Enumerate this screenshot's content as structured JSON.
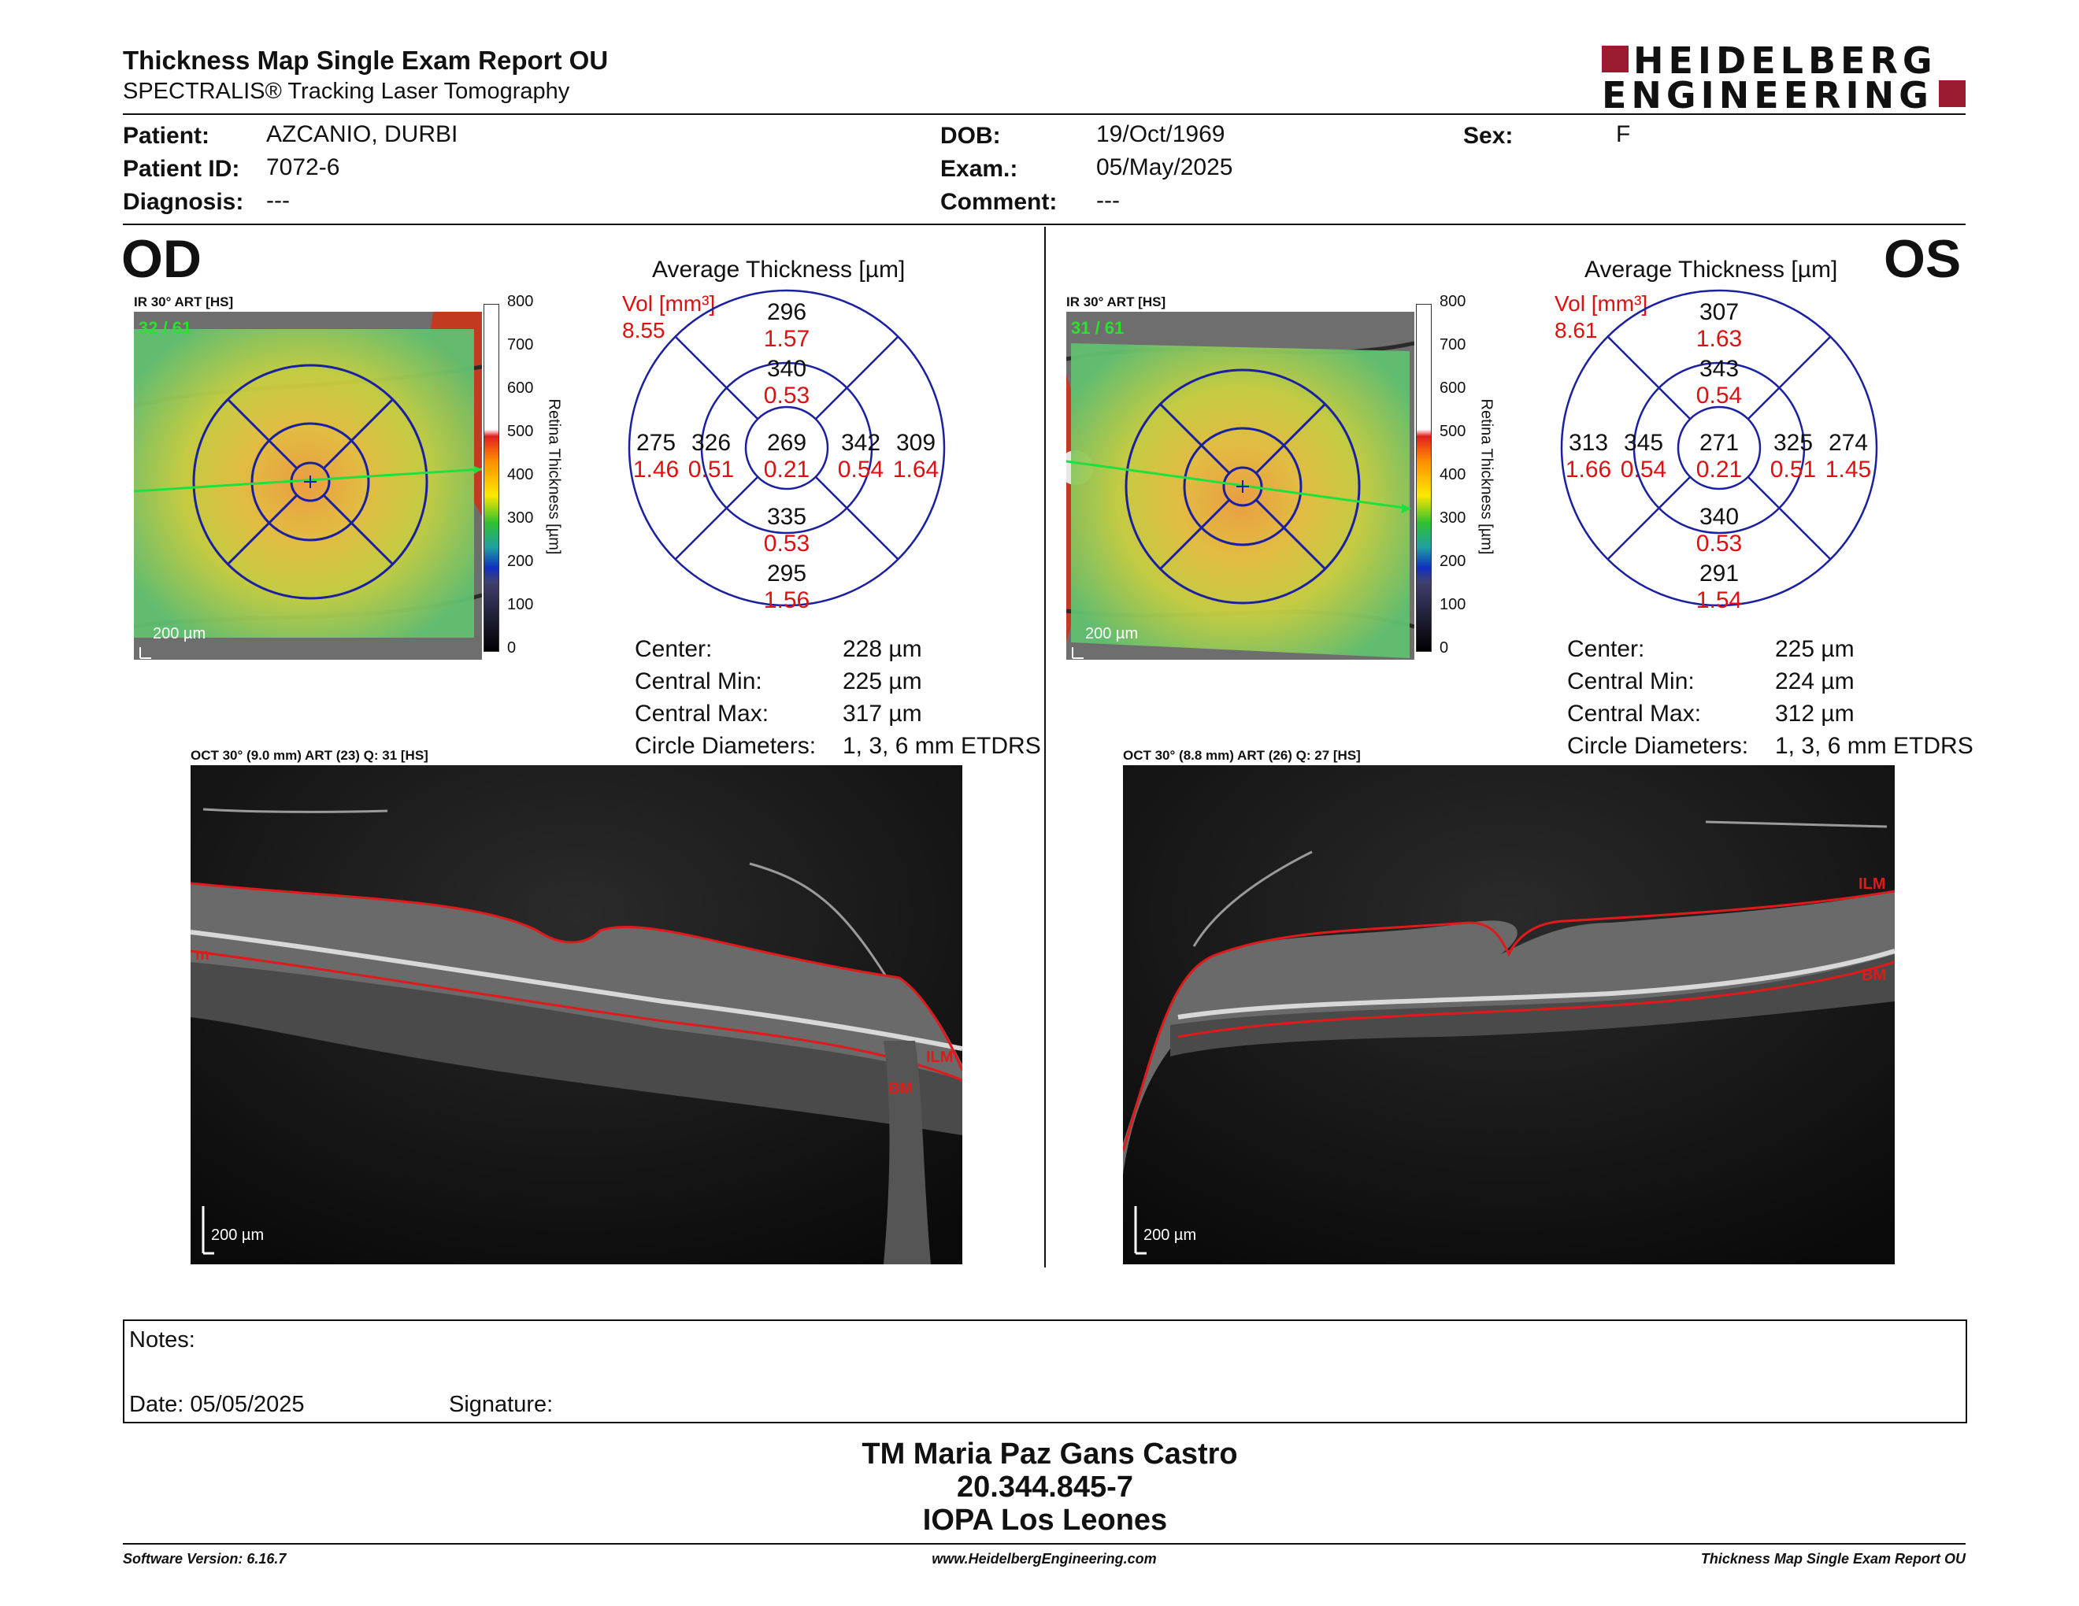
{
  "header": {
    "title": "Thickness Map Single Exam Report OU",
    "subtitle": "SPECTRALIS® Tracking Laser Tomography",
    "logo_line1": "HEIDELBERG",
    "logo_line2": "ENGINEERING",
    "brand_color": "#9b1b30"
  },
  "patient": {
    "patient_label": "Patient:",
    "patient_value": "AZCANIO, DURBI",
    "id_label": "Patient ID:",
    "id_value": "7072-6",
    "diagnosis_label": "Diagnosis:",
    "diagnosis_value": "---",
    "dob_label": "DOB:",
    "dob_value": "19/Oct/1969",
    "exam_label": "Exam.:",
    "exam_value": "05/May/2025",
    "comment_label": "Comment:",
    "comment_value": "---",
    "sex_label": "Sex:",
    "sex_value": "F"
  },
  "od": {
    "eye": "OD",
    "ir_label": "IR 30° ART [HS]",
    "ir_counter": "32 / 61",
    "ir_scale": "200 µm",
    "avg_title": "Average Thickness [µm]",
    "vol_label": "Vol [mm³]",
    "vol_total": "8.55",
    "center": "269",
    "center_vol": "0.21",
    "inner_sup": "340",
    "inner_sup_vol": "0.53",
    "inner_inf": "335",
    "inner_inf_vol": "0.53",
    "inner_temp": "326",
    "inner_temp_vol": "0.51",
    "inner_nas": "342",
    "inner_nas_vol": "0.54",
    "outer_sup": "296",
    "outer_sup_vol": "1.57",
    "outer_inf": "295",
    "outer_inf_vol": "1.56",
    "outer_temp": "275",
    "outer_temp_vol": "1.46",
    "outer_nas": "309",
    "outer_nas_vol": "1.64",
    "center_label": "Center:",
    "center_value": "228 µm",
    "cmin_label": "Central Min:",
    "cmin_value": "225 µm",
    "cmax_label": "Central Max:",
    "cmax_value": "317 µm",
    "circ_label": "Circle Diameters:",
    "circ_value": "1, 3, 6 mm ETDRS",
    "oct_label": "OCT 30° (9.0 mm) ART (23) Q: 31 [HS]",
    "oct_scale": "200 µm",
    "ilm": "ILM",
    "bm": "BM",
    "m_tag": "m"
  },
  "os": {
    "eye": "OS",
    "ir_label": "IR 30° ART [HS]",
    "ir_counter": "31 / 61",
    "ir_scale": "200 µm",
    "avg_title": "Average Thickness [µm]",
    "vol_label": "Vol [mm³]",
    "vol_total": "8.61",
    "center": "271",
    "center_vol": "0.21",
    "inner_sup": "343",
    "inner_sup_vol": "0.54",
    "inner_inf": "340",
    "inner_inf_vol": "0.53",
    "inner_temp": "345",
    "inner_temp_vol": "0.54",
    "inner_nas": "325",
    "inner_nas_vol": "0.51",
    "outer_sup": "307",
    "outer_sup_vol": "1.63",
    "outer_inf": "291",
    "outer_inf_vol": "1.54",
    "outer_temp": "313",
    "outer_temp_vol": "1.66",
    "outer_nas": "274",
    "outer_nas_vol": "1.45",
    "center_label": "Center:",
    "center_value": "225 µm",
    "cmin_label": "Central Min:",
    "cmin_value": "224 µm",
    "cmax_label": "Central Max:",
    "cmax_value": "312 µm",
    "circ_label": "Circle Diameters:",
    "circ_value": "1, 3, 6 mm ETDRS",
    "oct_label": "OCT 30° (8.8 mm) ART (26) Q: 27 [HS]",
    "oct_scale": "200 µm",
    "ilm": "ILM",
    "bm": "BM"
  },
  "colorbar": {
    "ticks": [
      "800",
      "700",
      "600",
      "500",
      "400",
      "300",
      "200",
      "100",
      "0"
    ],
    "axis_label": "Retina  Thickness [µm]"
  },
  "notes": {
    "notes_label": "Notes:",
    "date_label": "Date: 05/05/2025",
    "signature_label": "Signature:"
  },
  "signer": {
    "name": "TM Maria Paz Gans Castro",
    "rut": "20.344.845-7",
    "clinic": "IOPA Los Leones"
  },
  "footer": {
    "software": "Software Version: 6.16.7",
    "website": "www.HeidelbergEngineering.com",
    "report": "Thickness Map Single Exam Report OU"
  }
}
